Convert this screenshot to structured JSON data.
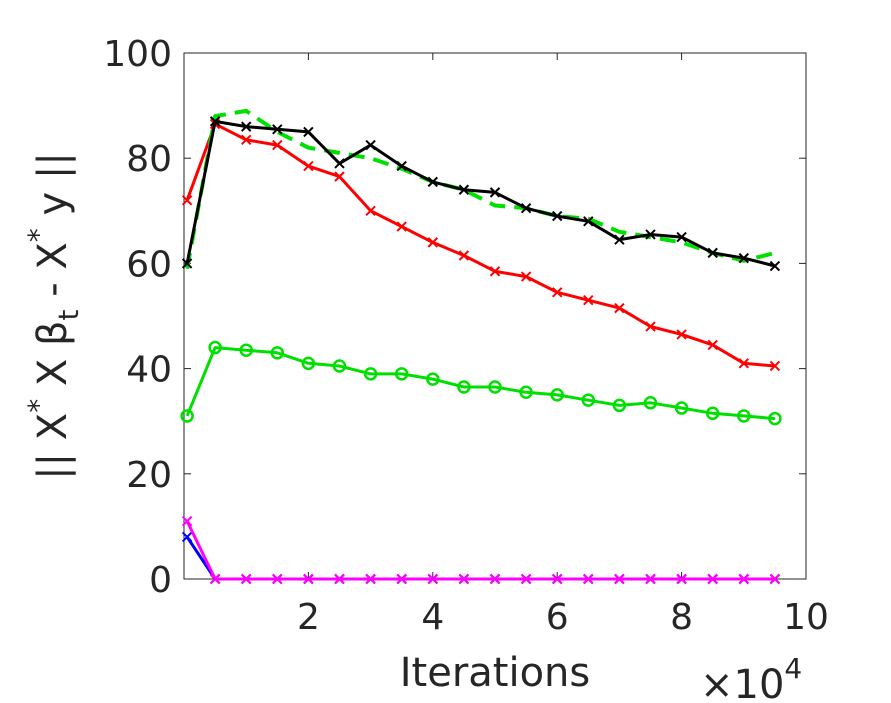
{
  "chart_data": {
    "type": "line",
    "xlabel": "Iterations",
    "x_multiplier_label": {
      "prefix": "×10",
      "exponent": "4"
    },
    "ylabel_parts": [
      "|| X",
      "*",
      " X β",
      "t",
      " - X",
      "*",
      " y ||"
    ],
    "xlim": [
      0,
      10
    ],
    "ylim": [
      0,
      100
    ],
    "xticks": [
      2,
      4,
      6,
      8,
      10
    ],
    "yticks": [
      0,
      20,
      40,
      60,
      80,
      100
    ],
    "grid": false,
    "x": [
      0.05,
      0.5,
      1,
      1.5,
      2,
      2.5,
      3,
      3.5,
      4,
      4.5,
      5,
      5.5,
      6,
      6.5,
      7,
      7.5,
      8,
      8.5,
      9,
      9.5
    ],
    "series": [
      {
        "color": "#ff0000",
        "marker": "x",
        "dash": "solid",
        "values": [
          72,
          86.5,
          83.5,
          82.5,
          78.5,
          76.5,
          70,
          67,
          64,
          61.5,
          58.5,
          57.5,
          54.5,
          53,
          51.5,
          48,
          46.5,
          44.5,
          41,
          40.5
        ]
      },
      {
        "color": "#00e000",
        "marker": "o",
        "dash": "solid",
        "values": [
          31,
          44,
          43.5,
          43,
          41,
          40.5,
          39,
          39,
          38,
          36.5,
          36.5,
          35.5,
          35,
          34,
          33,
          33.5,
          32.5,
          31.5,
          31,
          30.5
        ]
      },
      {
        "color": "#0000ff",
        "marker": "x",
        "dash": "solid",
        "values": [
          8,
          0,
          0,
          0,
          0,
          0,
          0,
          0,
          0,
          0,
          0,
          0,
          0,
          0,
          0,
          0,
          0,
          0,
          0,
          0
        ]
      },
      {
        "color": "#ff00ff",
        "marker": "x",
        "dash": "solid",
        "values": [
          11,
          0,
          0,
          0,
          0,
          0,
          0,
          0,
          0,
          0,
          0,
          0,
          0,
          0,
          0,
          0,
          0,
          0,
          0,
          0
        ]
      },
      {
        "color": "#00e000",
        "marker": "none",
        "dash": "dashed",
        "values": [
          59,
          88,
          89,
          85,
          82,
          81,
          80,
          78,
          75.5,
          74,
          71,
          70.5,
          69,
          68.5,
          66,
          65,
          64,
          62,
          60.5,
          62
        ]
      },
      {
        "color": "#000000",
        "marker": "x",
        "dash": "solid",
        "values": [
          60,
          87,
          86,
          85.5,
          85,
          79,
          82.5,
          78.5,
          75.5,
          74,
          73.5,
          70.5,
          69,
          68,
          64.5,
          65.5,
          65,
          62,
          61,
          59.5
        ]
      }
    ]
  }
}
